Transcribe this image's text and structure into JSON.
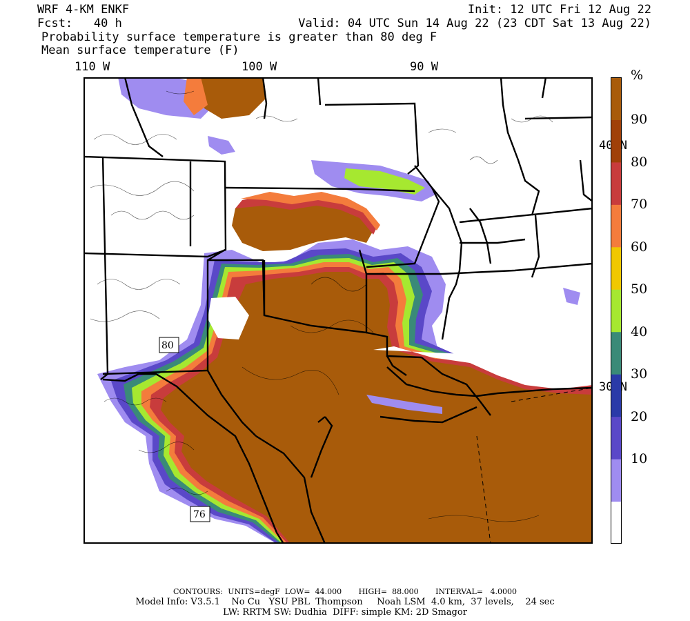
{
  "header": {
    "line1_left": "WRF 4-KM ENKF",
    "line2_left": "Fcst:   40 h",
    "line1_right": "Init: 12 UTC Fri 12 Aug 22",
    "line2_right": "Valid: 04 UTC Sun 14 Aug 22 (23 CDT Sat 13 Aug 22)",
    "line3": "Probability surface temperature is greater than 80 deg F",
    "line4": "Mean surface temperature (F)"
  },
  "map": {
    "longitude_labels": [
      "110 W",
      "100 W",
      "90 W"
    ],
    "latitude_labels": [
      "40 N",
      "30 N"
    ],
    "contour_labels": [
      "80",
      "76"
    ]
  },
  "colorbar": {
    "unit": "%",
    "ticks": [
      "90",
      "80",
      "70",
      "60",
      "50",
      "40",
      "30",
      "20",
      "10"
    ],
    "colors": [
      "#ffffff",
      "#9f8cf0",
      "#5a48c8",
      "#2a3aa8",
      "#3a8a78",
      "#a6e830",
      "#f0c800",
      "#f47c3c",
      "#c83c3c",
      "#a04008",
      "#a85b0a"
    ]
  },
  "footer": {
    "line1": "CONTOURS:  UNITS=degF  LOW=  44.000       HIGH=  88.000       INTERVAL=   4.0000",
    "line2": "Model Info: V3.5.1    No Cu   YSU PBL  Thompson     Noah LSM  4.0 km,  37 levels,    24 sec",
    "line3": "LW: RRTM SW: Dudhia  DIFF: simple KM: 2D Smagor"
  }
}
